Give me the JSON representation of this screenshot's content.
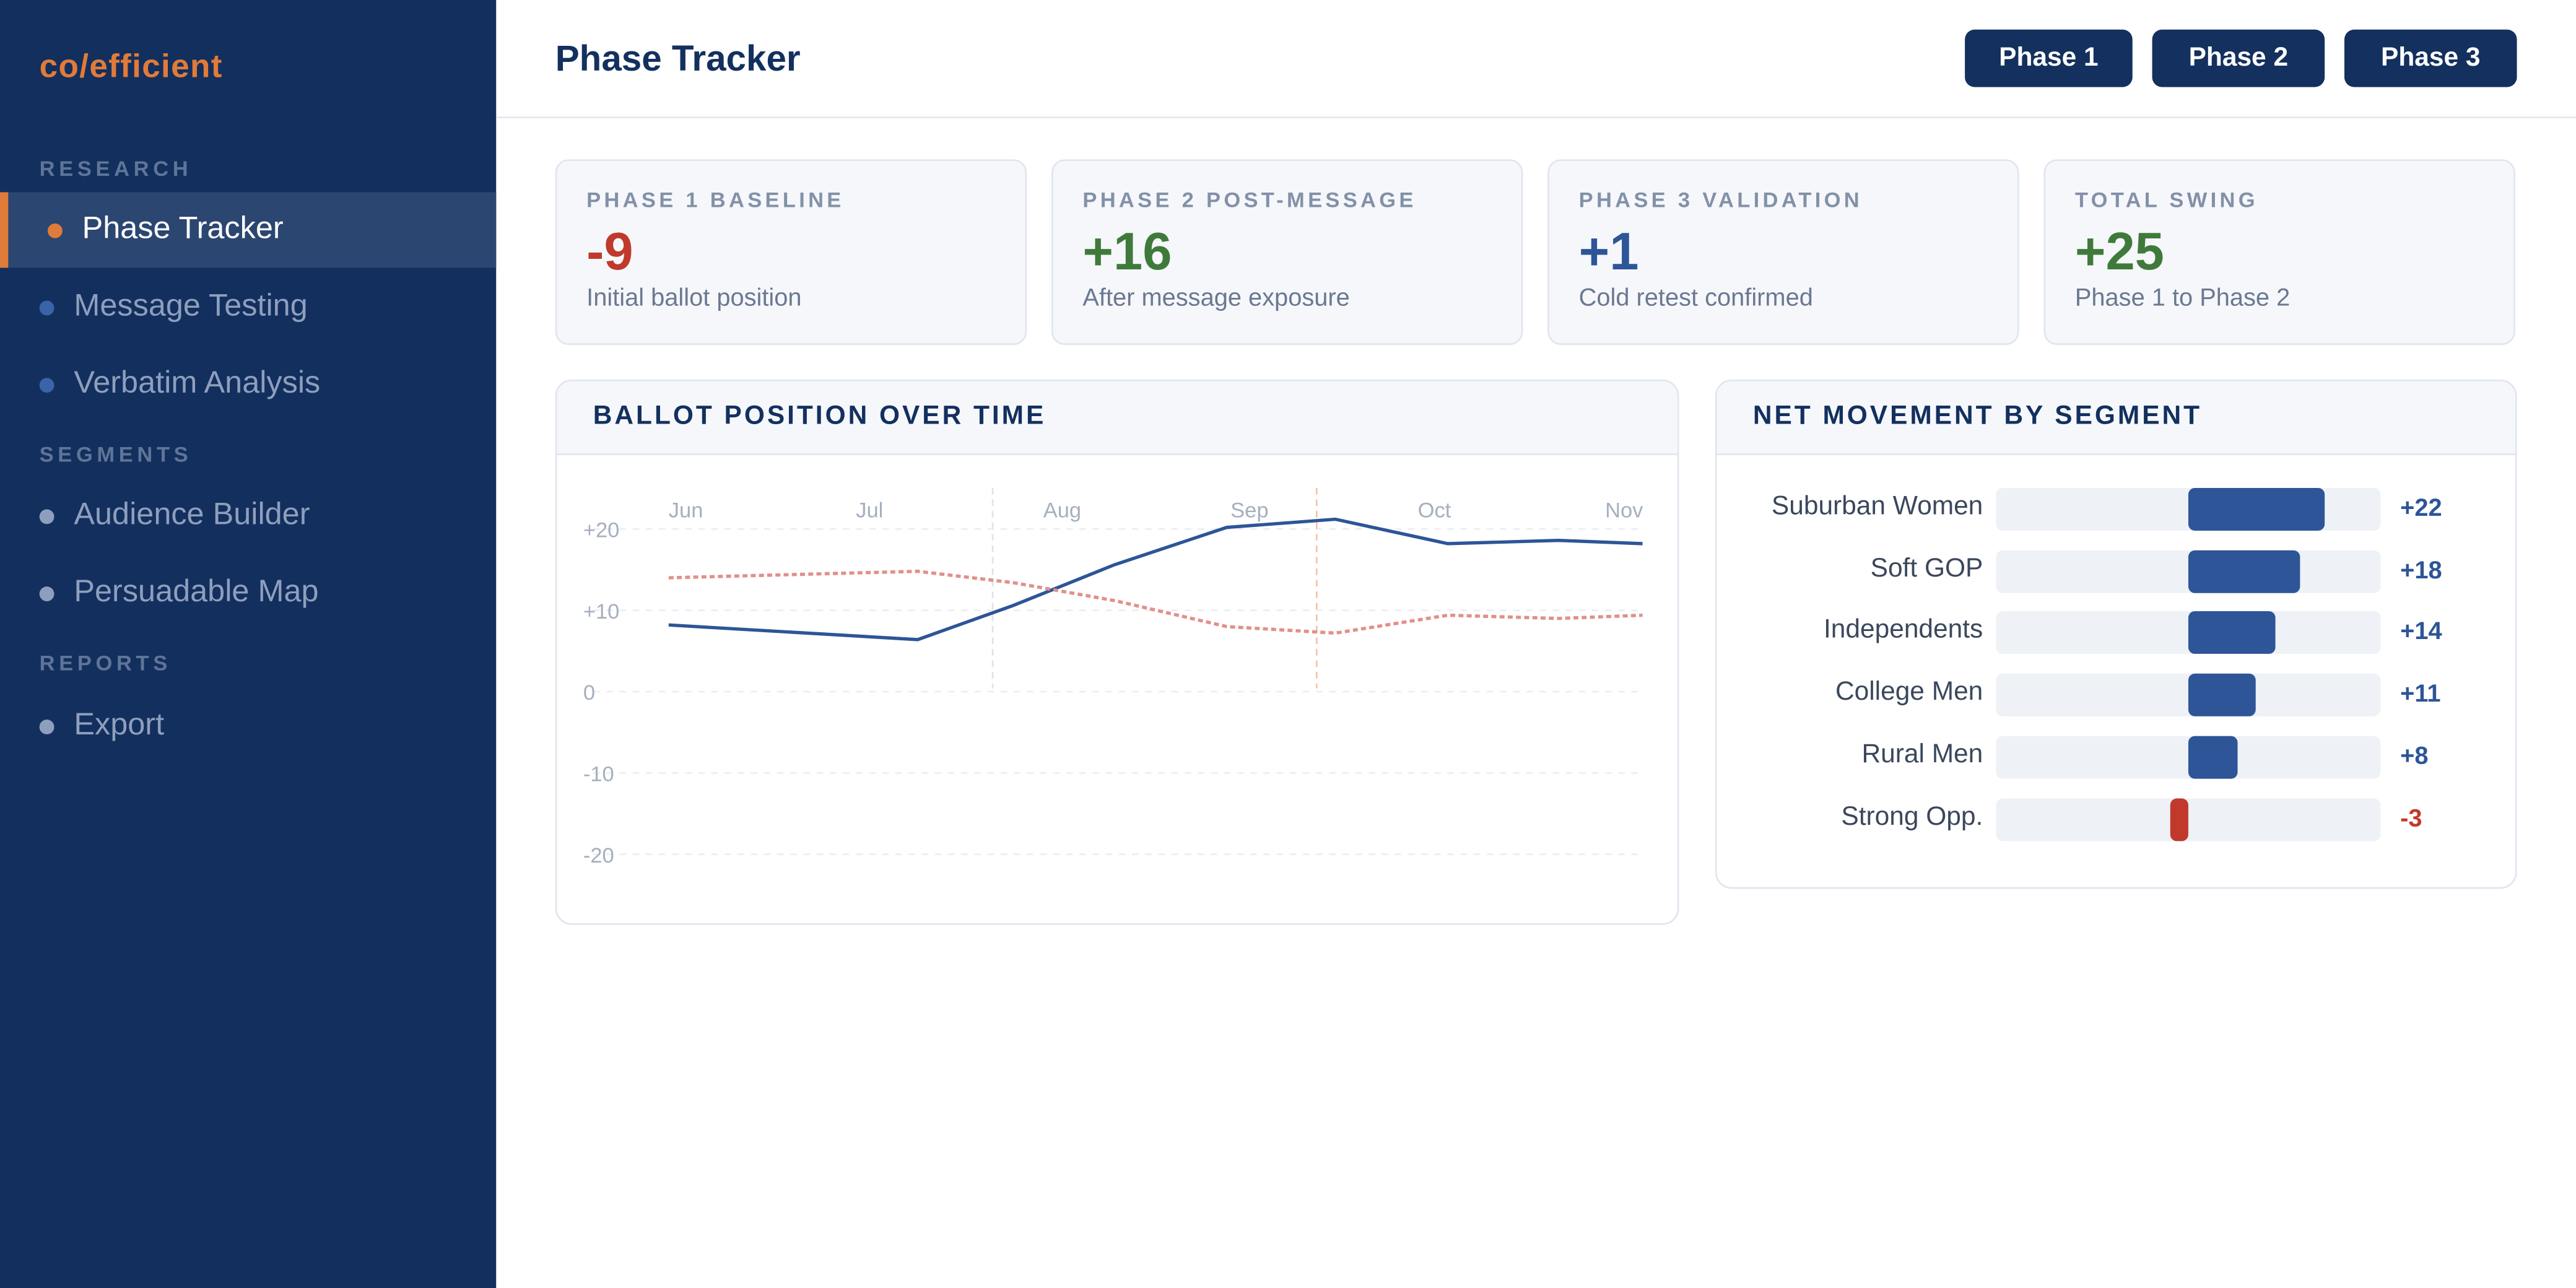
{
  "brand": "co/efficient",
  "sidebar": {
    "sections": [
      {
        "label": "RESEARCH",
        "items": [
          {
            "label": "Phase Tracker",
            "active": true,
            "dot": "#e07b39"
          },
          {
            "label": "Message Testing",
            "dot": "#3a64a8"
          },
          {
            "label": "Verbatim Analysis",
            "dot": "#3a64a8"
          }
        ]
      },
      {
        "label": "SEGMENTS",
        "items": [
          {
            "label": "Audience Builder",
            "dot": "#8e9fbd"
          },
          {
            "label": "Persuadable Map",
            "dot": "#8e9fbd"
          }
        ]
      },
      {
        "label": "REPORTS",
        "items": [
          {
            "label": "Export",
            "dot": "#8e9fbd"
          }
        ]
      }
    ]
  },
  "header": {
    "title": "Phase Tracker",
    "buttons": [
      "Phase 1",
      "Phase 2",
      "Phase 3"
    ]
  },
  "cards": [
    {
      "label": "PHASE 1 BASELINE",
      "value": "-9",
      "sub": "Initial ballot position",
      "color": "#c0392b"
    },
    {
      "label": "PHASE 2 POST-MESSAGE",
      "value": "+16",
      "sub": "After message exposure",
      "color": "#3f7a3a"
    },
    {
      "label": "PHASE 3 VALIDATION",
      "value": "+1",
      "sub": "Cold retest confirmed",
      "color": "#2d5597"
    },
    {
      "label": "TOTAL SWING",
      "value": "+25",
      "sub": "Phase 1 to Phase 2",
      "color": "#3f7a3a"
    }
  ],
  "chart_data": [
    {
      "type": "line",
      "title": "BALLOT POSITION OVER TIME",
      "x_ticks": [
        "Jun",
        "Jul",
        "Aug",
        "Sep",
        "Oct",
        "Nov"
      ],
      "y_ticks": [
        "+20",
        "+10",
        "0",
        "-10",
        "-20"
      ],
      "ylim": [
        -20,
        20
      ],
      "grid": true,
      "phase_dividers": [
        1.73,
        3.46
      ],
      "series": [
        {
          "style": "solid",
          "color": "#2d5597",
          "x": [
            0,
            1.33,
            1.84,
            2.38,
            2.98,
            3.56,
            4.16,
            4.75,
            5.2
          ],
          "y": [
            8.2,
            6.4,
            10.6,
            15.6,
            20.2,
            21.2,
            18.2,
            18.6,
            18.2
          ]
        },
        {
          "style": "dotted",
          "color": "#e0908a",
          "x": [
            0,
            1.33,
            1.84,
            2.38,
            2.98,
            3.56,
            4.16,
            4.75,
            5.2
          ],
          "y": [
            14,
            14.8,
            13.4,
            11.2,
            8,
            7.2,
            9.4,
            9,
            9.4
          ]
        }
      ]
    },
    {
      "type": "bar",
      "title": "NET MOVEMENT BY SEGMENT",
      "categories": [
        "Suburban Women",
        "Soft GOP",
        "Independents",
        "College Men",
        "Rural Men",
        "Strong Opp."
      ],
      "values": [
        22,
        18,
        14,
        11,
        8,
        -3
      ],
      "labels": [
        "+22",
        "+18",
        "+14",
        "+11",
        "+8",
        "-3"
      ],
      "colors": {
        "positive": "#2d5597",
        "negative": "#c0392b"
      }
    }
  ]
}
